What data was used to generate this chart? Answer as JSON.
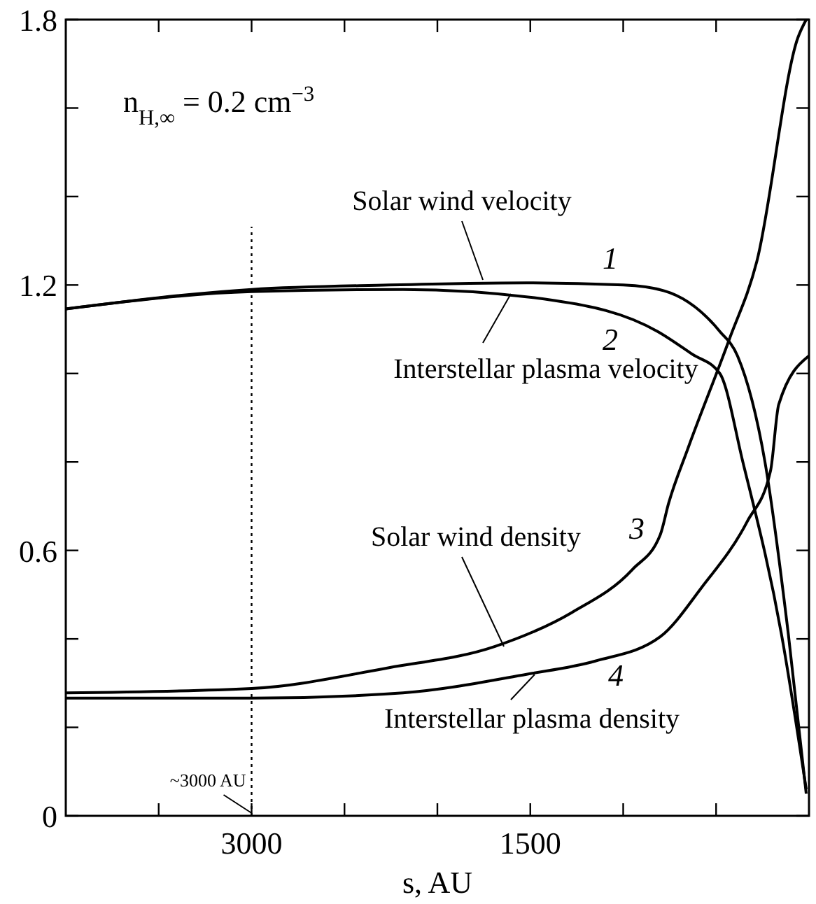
{
  "chart_data": {
    "type": "line",
    "xlabel": "s, AU",
    "xlim": [
      4000,
      0
    ],
    "ylim": [
      0,
      1.8
    ],
    "xticks": [
      {
        "value": 3500,
        "label": null
      },
      3000,
      {
        "value": 2500,
        "label": null
      },
      {
        "value": 2000,
        "label": null
      },
      1500,
      {
        "value": 1000,
        "label": null
      },
      {
        "value": 500,
        "label": null
      }
    ],
    "yticks": [
      0,
      {
        "value": 0.2,
        "label": null
      },
      {
        "value": 0.4,
        "label": null
      },
      0.6,
      {
        "value": 0.8,
        "label": null
      },
      {
        "value": 1.0,
        "label": null
      },
      1.2,
      {
        "value": 1.4,
        "label": null
      },
      {
        "value": 1.6,
        "label": null
      },
      1.8
    ],
    "grid": false,
    "legend": "center",
    "marker": "none",
    "line_style": "solid",
    "series": [
      {
        "name": "Solar wind velocity",
        "color": "#000000",
        "x": [
          4000,
          3000,
          2260,
          1520,
          1000,
          780,
          480,
          385,
          237,
          111,
          15
        ],
        "values": [
          1.146,
          1.19,
          1.2,
          1.205,
          1.2,
          1.187,
          1.095,
          1.04,
          0.8,
          0.41,
          0.05
        ]
      },
      {
        "name": "Interstellar plasma velocity",
        "color": "#000000",
        "x": [
          4000,
          3000,
          2185,
          1370,
          815,
          630,
          480,
          356,
          148,
          15
        ],
        "values": [
          1.146,
          1.185,
          1.19,
          1.165,
          1.095,
          1.044,
          1.0,
          0.8,
          0.41,
          0.06
        ]
      },
      {
        "name": "Solar wind density",
        "color": "#000000",
        "x": [
          4000,
          3000,
          2260,
          1690,
          1275,
          950,
          800,
          756,
          652,
          430,
          281,
          59,
          15
        ],
        "values": [
          0.278,
          0.288,
          0.335,
          0.383,
          0.46,
          0.557,
          0.636,
          0.706,
          0.83,
          1.076,
          1.253,
          1.76,
          1.8
        ]
      },
      {
        "name": "Interstellar plasma density",
        "color": "#000000",
        "x": [
          4000,
          3000,
          2185,
          1520,
          1150,
          800,
          578,
          333,
          207,
          163,
          0
        ],
        "values": [
          0.266,
          0.266,
          0.278,
          0.32,
          0.35,
          0.405,
          0.516,
          0.665,
          0.78,
          0.93,
          1.04
        ]
      }
    ],
    "ref_lines": [
      {
        "axis": "x",
        "value": 3000,
        "label": "~3000 AU",
        "line_style": "dotted",
        "color": "#000000"
      }
    ],
    "annotations": [
      "n$_{H,∞}$ = 0.2 cm$^{−3}$",
      "1",
      "2",
      "3",
      "4"
    ]
  }
}
